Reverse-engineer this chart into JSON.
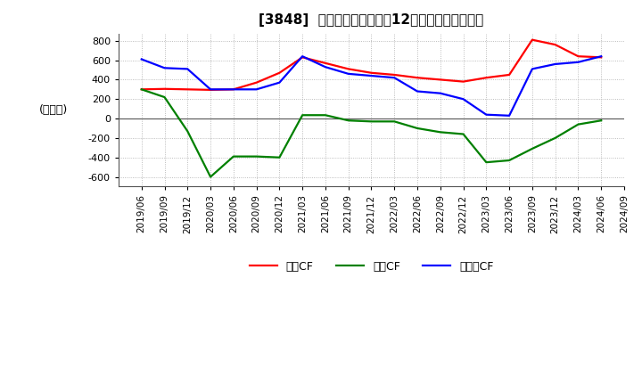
{
  "title": "[3848]  キャッシュフローの12か月移動合計の推移",
  "ylabel": "(百万円)",
  "ylim": [
    -700,
    870
  ],
  "yticks": [
    -600,
    -400,
    -200,
    0,
    200,
    400,
    600,
    800
  ],
  "dates": [
    "2019/06",
    "2019/09",
    "2019/12",
    "2020/03",
    "2020/06",
    "2020/09",
    "2020/12",
    "2021/03",
    "2021/06",
    "2021/09",
    "2021/12",
    "2022/03",
    "2022/06",
    "2022/09",
    "2022/12",
    "2023/03",
    "2023/06",
    "2023/09",
    "2023/12",
    "2024/03",
    "2024/06",
    "2024/09"
  ],
  "operating_cf": [
    300,
    305,
    300,
    295,
    300,
    370,
    470,
    630,
    570,
    510,
    470,
    450,
    420,
    400,
    380,
    420,
    450,
    810,
    760,
    640,
    630,
    null
  ],
  "investing_cf": [
    300,
    220,
    -130,
    -600,
    -390,
    -390,
    -400,
    35,
    35,
    -20,
    -30,
    -30,
    -100,
    -140,
    -160,
    -450,
    -430,
    -310,
    -200,
    -60,
    -20,
    null
  ],
  "free_cf": [
    610,
    520,
    510,
    300,
    300,
    300,
    370,
    640,
    530,
    460,
    440,
    420,
    280,
    260,
    200,
    40,
    30,
    510,
    560,
    580,
    640,
    null
  ],
  "operating_color": "#ff0000",
  "investing_color": "#008000",
  "free_cf_color": "#0000ff",
  "line_width": 1.6,
  "legend_labels": [
    "営業CF",
    "投資CF",
    "フリーCF"
  ],
  "background_color": "#ffffff",
  "grid_color": "#aaaaaa"
}
